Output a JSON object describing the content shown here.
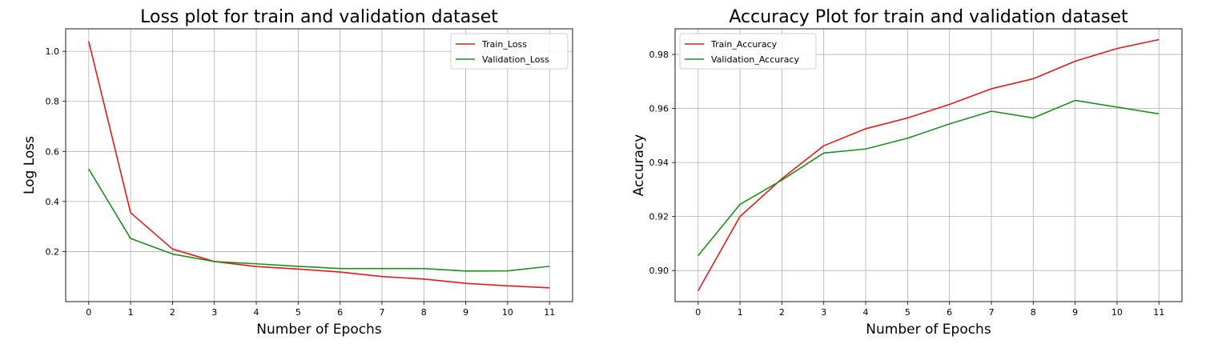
{
  "chart_data": [
    {
      "type": "line",
      "title": "Loss plot for train and validation dataset",
      "xlabel": "Number of Epochs",
      "ylabel": "Log Loss",
      "x": [
        0,
        1,
        2,
        3,
        4,
        5,
        6,
        7,
        8,
        9,
        10,
        11
      ],
      "xticks": [
        "0",
        "1",
        "2",
        "3",
        "4",
        "5",
        "6",
        "7",
        "8",
        "9",
        "10",
        "11"
      ],
      "yticks": [
        0.2,
        0.4,
        0.6,
        0.8,
        1.0
      ],
      "ytick_labels": [
        "0.2",
        "0.4",
        "0.6",
        "0.8",
        "1.0"
      ],
      "xlim": [
        -0.55,
        11.55
      ],
      "ylim": [
        0.0,
        1.09
      ],
      "grid": true,
      "legend": "top-right",
      "series": [
        {
          "name": "Train_Loss",
          "color": "#e41a1c",
          "values": [
            1.04,
            0.355,
            0.21,
            0.16,
            0.14,
            0.13,
            0.118,
            0.1,
            0.09,
            0.073,
            0.063,
            0.055
          ]
        },
        {
          "name": "Validation_Loss",
          "color": "#1e8f1e",
          "values": [
            0.53,
            0.252,
            0.19,
            0.16,
            0.151,
            0.141,
            0.132,
            0.132,
            0.132,
            0.122,
            0.123,
            0.141
          ]
        }
      ]
    },
    {
      "type": "line",
      "title": "Accuracy Plot for train and validation dataset",
      "xlabel": "Number of Epochs",
      "ylabel": "Accuracy",
      "x": [
        0,
        1,
        2,
        3,
        4,
        5,
        6,
        7,
        8,
        9,
        10,
        11
      ],
      "xticks": [
        "0",
        "1",
        "2",
        "3",
        "4",
        "5",
        "6",
        "7",
        "8",
        "9",
        "10",
        "11"
      ],
      "yticks": [
        0.9,
        0.92,
        0.94,
        0.96,
        0.98
      ],
      "ytick_labels": [
        "0.90",
        "0.92",
        "0.94",
        "0.96",
        "0.98"
      ],
      "xlim": [
        -0.55,
        11.55
      ],
      "ylim": [
        0.8885,
        0.9895
      ],
      "grid": true,
      "legend": "top-left",
      "series": [
        {
          "name": "Train_Accuracy",
          "color": "#e41a1c",
          "values": [
            0.8925,
            0.92,
            0.934,
            0.9462,
            0.9525,
            0.9565,
            0.9615,
            0.9673,
            0.971,
            0.9775,
            0.9822,
            0.9855
          ]
        },
        {
          "name": "Validation_Accuracy",
          "color": "#1e8f1e",
          "values": [
            0.9055,
            0.9245,
            0.9335,
            0.9435,
            0.945,
            0.949,
            0.9543,
            0.959,
            0.9565,
            0.963,
            0.9605,
            0.958
          ]
        }
      ]
    }
  ]
}
